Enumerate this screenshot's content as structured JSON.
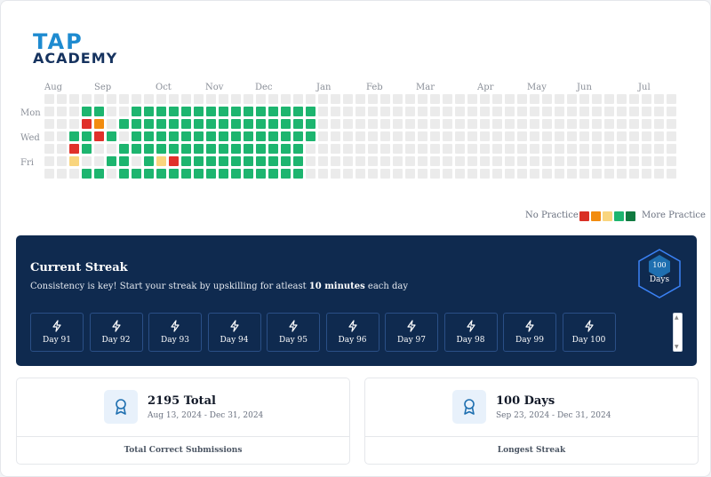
{
  "brand": {
    "line1": "TAP",
    "line2": "ACADEMY"
  },
  "calendar": {
    "months": [
      "Aug",
      "Sep",
      "Oct",
      "Nov",
      "Dec",
      "Jan",
      "Feb",
      "Mar",
      "Apr",
      "May",
      "Jun",
      "Jul"
    ],
    "day_labels": [
      "Mon",
      "Wed",
      "Fri"
    ],
    "weeks": 51,
    "filled_weeks": 23,
    "levels": [
      "000000000000000000000000000000000000000000000000000",
      "000440044444444444444400000000000000000000000000000",
      "000120444444444444444400000000000000000000000000000",
      "004414044444444444444400000000000000000000000000000",
      "001400444444444444444000000000000000000000000000000",
      "003004404314444444444000000000000000000000000000000",
      "000440444444444444444000000000000000000000000000000"
    ],
    "level_colors": [
      "#ebebeb",
      "#e0302a",
      "#f28c0f",
      "#f9d57e",
      "#1db56f",
      "#107a40"
    ]
  },
  "legend": {
    "no_practice": "No Practice",
    "more_practice": "More Practice",
    "colors": [
      "#d93025",
      "#f28c0f",
      "#f9d57e",
      "#1db56f",
      "#107a40"
    ]
  },
  "streak": {
    "title": "Current Streak",
    "subtitle_pre": "Consistency is key! Start your streak by upskilling for atleast ",
    "subtitle_bold": "10 minutes",
    "subtitle_post": " each day",
    "badge_value": "100",
    "badge_label": "Days",
    "days": [
      "Day 91",
      "Day 92",
      "Day 93",
      "Day 94",
      "Day 95",
      "Day 96",
      "Day 97",
      "Day 98",
      "Day 99",
      "Day 100"
    ]
  },
  "stats": [
    {
      "value": "2195 Total",
      "range": "Aug 13, 2024 - Dec 31, 2024",
      "caption": "Total Correct Submissions",
      "icon": "award-icon"
    },
    {
      "value": "100 Days",
      "range": "Sep 23, 2024 - Dec 31, 2024",
      "caption": "Longest Streak",
      "icon": "award-icon"
    }
  ]
}
